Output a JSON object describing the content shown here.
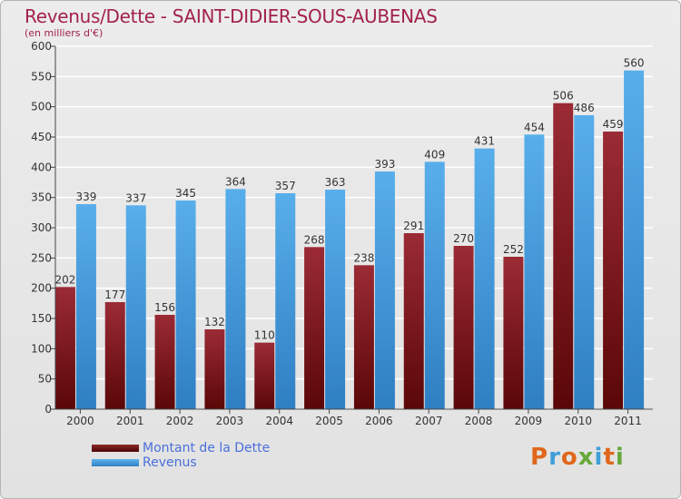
{
  "title": "Revenus/Dette - SAINT-DIDIER-SOUS-AUBENAS",
  "subtitle": "(en milliers d'€)",
  "logo_text": "Proxiti",
  "colors": {
    "title": "#a2224a",
    "dette": "#7a1a1a",
    "revenus": "#4ea3e2",
    "legend_text": "#4a6fdc",
    "logo": [
      "#e0671b",
      "#3f9fd8",
      "#e0671b",
      "#67a83a",
      "#3f9fd8",
      "#e0671b",
      "#67a83a"
    ]
  },
  "chart_data": {
    "type": "bar",
    "title": "Revenus/Dette - SAINT-DIDIER-SOUS-AUBENAS",
    "subtitle": "(en milliers d'€)",
    "xlabel": "",
    "ylabel": "",
    "ylim": [
      0,
      600
    ],
    "yticks": [
      0,
      50,
      100,
      150,
      200,
      250,
      300,
      350,
      400,
      450,
      500,
      550,
      600
    ],
    "grid": true,
    "legend_position": "bottom-left",
    "categories": [
      "2000",
      "2001",
      "2002",
      "2003",
      "2004",
      "2005",
      "2006",
      "2007",
      "2008",
      "2009",
      "2010",
      "2011"
    ],
    "series": [
      {
        "name": "Montant de la Dette",
        "values": [
          202,
          177,
          156,
          132,
          110,
          268,
          238,
          291,
          270,
          252,
          506,
          459
        ]
      },
      {
        "name": "Revenus",
        "values": [
          339,
          337,
          345,
          364,
          357,
          363,
          393,
          409,
          431,
          454,
          486,
          560
        ]
      }
    ]
  }
}
